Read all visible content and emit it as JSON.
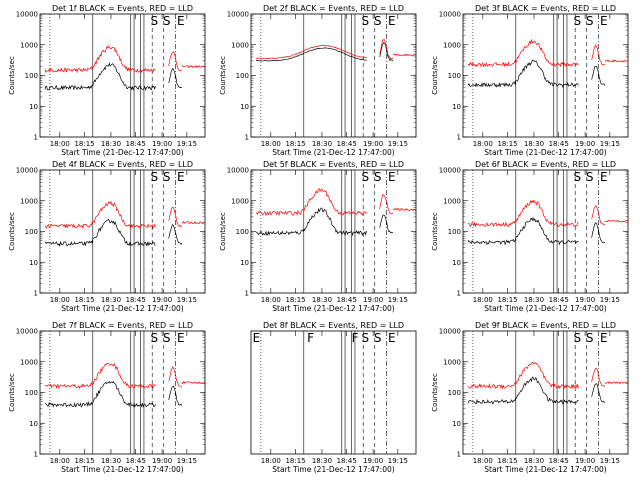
{
  "colors": {
    "events": "#000000",
    "lld": "#ff0000"
  },
  "chart_data": [
    {
      "type": "line",
      "panel": 1,
      "title": "Det 1f BLACK = Events, RED = LLD",
      "xlabel": "Start Time (21-Dec-12 17:47:00)",
      "ylabel": "Counts/sec",
      "xticks": [
        "18:00",
        "18:15",
        "18:30",
        "18:45",
        "19:00",
        "19:15"
      ],
      "yticks": [
        "1",
        "10",
        "100",
        "1000",
        "10000"
      ],
      "ylog": true,
      "ylim": [
        1,
        10000
      ],
      "markers": [
        "S",
        "S",
        "E"
      ],
      "series": [
        {
          "name": "BLACK",
          "profile": "low",
          "base": 40
        },
        {
          "name": "RED",
          "profile": "low",
          "base": 150
        }
      ]
    },
    {
      "type": "line",
      "panel": 2,
      "title": "Det 2f BLACK = Events, RED = LLD",
      "xlabel": "Start Time (21-Dec-12 17:47:00)",
      "ylabel": "Counts/sec",
      "xticks": [
        "18:00",
        "18:15",
        "18:30",
        "18:45",
        "19:00",
        "19:15"
      ],
      "yticks": [
        "1",
        "10",
        "100",
        "1000",
        "10000"
      ],
      "ylog": true,
      "ylim": [
        1,
        10000
      ],
      "markers": [
        "S",
        "S",
        "E"
      ],
      "series": [
        {
          "name": "BLACK",
          "profile": "high",
          "base": 300
        },
        {
          "name": "RED",
          "profile": "high",
          "base": 360
        }
      ]
    },
    {
      "type": "line",
      "panel": 3,
      "title": "Det 3f BLACK = Events, RED = LLD",
      "xlabel": "Start Time (21-Dec-12 17:47:00)",
      "ylabel": "Counts/sec",
      "xticks": [
        "18:00",
        "18:15",
        "18:30",
        "18:45",
        "19:00",
        "19:15"
      ],
      "yticks": [
        "1",
        "10",
        "100",
        "1000",
        "10000"
      ],
      "ylog": true,
      "ylim": [
        1,
        10000
      ],
      "markers": [
        "S",
        "S",
        "E"
      ],
      "series": [
        {
          "name": "BLACK",
          "profile": "low",
          "base": 50
        },
        {
          "name": "RED",
          "profile": "low",
          "base": 230
        }
      ]
    },
    {
      "type": "line",
      "panel": 4,
      "title": "Det 4f BLACK = Events, RED = LLD",
      "xlabel": "Start Time (21-Dec-12 17:47:00)",
      "ylabel": "Counts/sec",
      "xticks": [
        "18:00",
        "18:15",
        "18:30",
        "18:45",
        "19:00",
        "19:15"
      ],
      "yticks": [
        "1",
        "10",
        "100",
        "1000",
        "10000"
      ],
      "ylog": true,
      "ylim": [
        1,
        10000
      ],
      "markers": [
        "S",
        "S",
        "E"
      ],
      "series": [
        {
          "name": "BLACK",
          "profile": "low",
          "base": 40
        },
        {
          "name": "RED",
          "profile": "low",
          "base": 150
        }
      ]
    },
    {
      "type": "line",
      "panel": 5,
      "title": "Det 5f BLACK = Events, RED = LLD",
      "xlabel": "Start Time (21-Dec-12 17:47:00)",
      "ylabel": "Counts/sec",
      "xticks": [
        "18:00",
        "18:15",
        "18:30",
        "18:45",
        "19:00",
        "19:15"
      ],
      "yticks": [
        "1",
        "10",
        "100",
        "1000",
        "10000"
      ],
      "ylog": true,
      "ylim": [
        1,
        10000
      ],
      "markers": [
        "S",
        "S",
        "E"
      ],
      "series": [
        {
          "name": "BLACK",
          "profile": "low",
          "base": 90
        },
        {
          "name": "RED",
          "profile": "low",
          "base": 400
        }
      ]
    },
    {
      "type": "line",
      "panel": 6,
      "title": "Det 6f BLACK = Events, RED = LLD",
      "xlabel": "Start Time (21-Dec-12 17:47:00)",
      "ylabel": "Counts/sec",
      "xticks": [
        "18:00",
        "18:15",
        "18:30",
        "18:45",
        "19:00",
        "19:15"
      ],
      "yticks": [
        "1",
        "10",
        "100",
        "1000",
        "10000"
      ],
      "ylog": true,
      "ylim": [
        1,
        10000
      ],
      "markers": [
        "S",
        "S",
        "E"
      ],
      "series": [
        {
          "name": "BLACK",
          "profile": "low",
          "base": 45
        },
        {
          "name": "RED",
          "profile": "low",
          "base": 170
        }
      ]
    },
    {
      "type": "line",
      "panel": 7,
      "title": "Det 7f BLACK = Events, RED = LLD",
      "xlabel": "Start Time (21-Dec-12 17:47:00)",
      "ylabel": "Counts/sec",
      "xticks": [
        "18:00",
        "18:15",
        "18:30",
        "18:45",
        "19:00",
        "19:15"
      ],
      "yticks": [
        "1",
        "10",
        "100",
        "1000",
        "10000"
      ],
      "ylog": true,
      "ylim": [
        1,
        10000
      ],
      "markers": [
        "S",
        "S",
        "E"
      ],
      "series": [
        {
          "name": "BLACK",
          "profile": "low",
          "base": 40
        },
        {
          "name": "RED",
          "profile": "low",
          "base": 160
        }
      ]
    },
    {
      "type": "line",
      "panel": 8,
      "title": "Det 8f BLACK = Events, RED = LLD",
      "xlabel": "Start Time (21-Dec-12 17:47:00)",
      "ylabel": "Counts/sec",
      "xticks": [
        "18:00",
        "18:15",
        "18:30",
        "18:45",
        "19:00",
        "19:15"
      ],
      "yticks": [],
      "ylog": true,
      "ylim": [
        1,
        10000
      ],
      "markers": [
        "E",
        "F",
        "F",
        "S",
        "S",
        "E"
      ],
      "series": []
    },
    {
      "type": "line",
      "panel": 9,
      "title": "Det 9f BLACK = Events, RED = LLD",
      "xlabel": "Start Time (21-Dec-12 17:47:00)",
      "ylabel": "Counts/sec",
      "xticks": [
        "18:00",
        "18:15",
        "18:30",
        "18:45",
        "19:00",
        "19:15"
      ],
      "yticks": [
        "1",
        "10",
        "100",
        "1000",
        "10000"
      ],
      "ylog": true,
      "ylim": [
        1,
        10000
      ],
      "markers": [
        "S",
        "S",
        "E"
      ],
      "series": [
        {
          "name": "BLACK",
          "profile": "low",
          "base": 50
        },
        {
          "name": "RED",
          "profile": "low",
          "base": 160
        }
      ]
    }
  ]
}
